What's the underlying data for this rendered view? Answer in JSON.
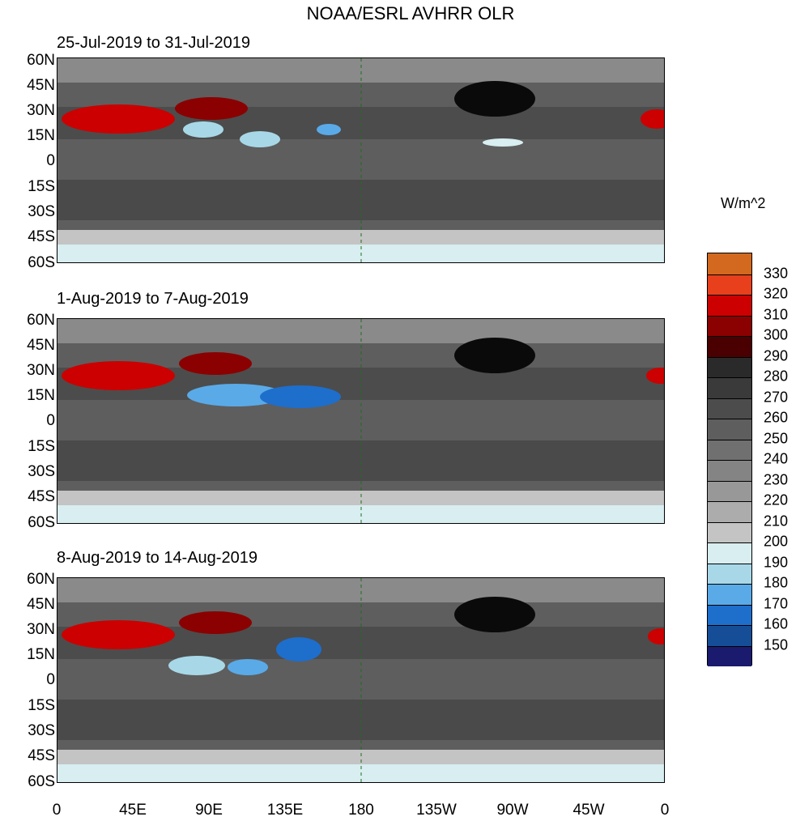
{
  "title": "NOAA/ESRL AVHRR OLR",
  "panels": [
    {
      "period": "25-Jul-2019 to 31-Jul-2019"
    },
    {
      "period": "1-Aug-2019 to 7-Aug-2019"
    },
    {
      "period": "8-Aug-2019 to 14-Aug-2019"
    }
  ],
  "lat_labels": [
    "60N",
    "45N",
    "30N",
    "15N",
    "0",
    "15S",
    "30S",
    "45S",
    "60S"
  ],
  "lon_labels": [
    "0",
    "45E",
    "90E",
    "135E",
    "180",
    "135W",
    "90W",
    "45W",
    "0"
  ],
  "colorbar": {
    "unit": "W/m^2",
    "ticks": [
      "330",
      "320",
      "310",
      "300",
      "290",
      "280",
      "270",
      "260",
      "250",
      "240",
      "230",
      "220",
      "210",
      "200",
      "190",
      "180",
      "170",
      "160",
      "150"
    ],
    "colors": [
      "#d2691e",
      "#e8401c",
      "#cc0000",
      "#8b0000",
      "#4a0000",
      "#2a2a2a",
      "#3a3a3a",
      "#4c4c4c",
      "#5e5e5e",
      "#707070",
      "#848484",
      "#989898",
      "#acacac",
      "#c4c4c4",
      "#d8eef0",
      "#a8d8e8",
      "#5aaae8",
      "#1e6ecc",
      "#154e96",
      "#1a1a6e"
    ]
  },
  "colors": {
    "coastline": "#1f6e1f",
    "dateline": "#1f6e1f"
  }
}
